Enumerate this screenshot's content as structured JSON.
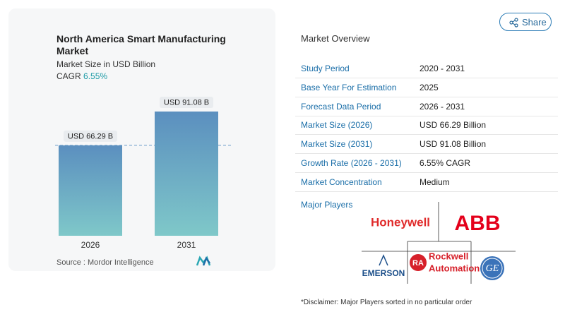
{
  "chart_data": {
    "type": "bar",
    "title": "North America Smart Manufacturing Market",
    "subtitle": "Market Size in USD Billion",
    "cagr_label": "CAGR",
    "cagr": "6.55%",
    "source": "Source :  Mordor Intelligence",
    "categories": [
      "2026",
      "2031"
    ],
    "values": [
      66.29,
      91.08
    ],
    "value_labels": [
      "USD 66.29 B",
      "USD 91.08 B"
    ]
  },
  "overview": {
    "title": "Market Overview",
    "rows": [
      [
        "Study Period",
        "2020 - 2031"
      ],
      [
        "Base Year For Estimation",
        "2025"
      ],
      [
        "Forecast Data Period",
        "2026 - 2031"
      ],
      [
        "Market Size (2026)",
        "USD 66.29 Billion"
      ],
      [
        "Market Size (2031)",
        "USD 91.08 Billion"
      ],
      [
        "Growth Rate (2026 - 2031)",
        "6.55% CAGR"
      ],
      [
        "Market Concentration",
        "Medium"
      ]
    ]
  },
  "players": {
    "label": "Major Players",
    "logos": [
      "Honeywell",
      "ABB",
      "EMERSON",
      "RA",
      "Rockwell",
      "Automation",
      "GE"
    ]
  },
  "disclaimer": "*Disclaimer: Major Players sorted in no particular order",
  "share": "Share"
}
